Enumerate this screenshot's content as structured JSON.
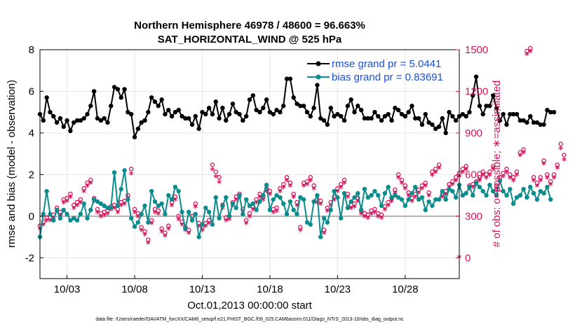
{
  "chart_data": {
    "type": "line",
    "title": "Northern Hemisphere 46978 / 48600 = 96.663%",
    "subtitle": "SAT_HORIZONTAL_WIND @ 525 hPa",
    "xlabel": "Oct.01,2013 00:00:00 start",
    "ylabel_left": "rmse and bias (model - observation)",
    "ylabel_right": "# of obs: o=possible; ∗=assimilated",
    "footer": "data file: /Users/raeder/DAI/ATM_forcXX/CAM6_setup/f.e21.FHIST_BGC.f09_025.CAM6assim.011/Diags_NTrS_2013-10/obs_diag_output.nc",
    "x_range": [
      1.0,
      32.0
    ],
    "y_left_range": [
      -3,
      8
    ],
    "y_right_range": [
      -150,
      1500
    ],
    "y_left_ticks": [
      "8",
      "6",
      "4",
      "2",
      "0",
      "-2"
    ],
    "y_right_ticks": [
      "1500",
      "1200",
      "900",
      "600",
      "300",
      "0"
    ],
    "x_ticks": [
      {
        "x": 3,
        "label": "10/03"
      },
      {
        "x": 8,
        "label": "10/08"
      },
      {
        "x": 13,
        "label": "10/13"
      },
      {
        "x": 18,
        "label": "10/18"
      },
      {
        "x": 23,
        "label": "10/23"
      },
      {
        "x": 28,
        "label": "10/28"
      }
    ],
    "grid": true,
    "colors": {
      "rmse": "#000000",
      "bias": "#0a8c8c",
      "obs": "#d4145a",
      "legend_text": "#1a4fd8",
      "zero_line": "#b0b0b0"
    },
    "series": [
      {
        "name": "rmse grand pr = 5.0441",
        "axis": "left",
        "x_start": 1.0,
        "x_step": 0.25,
        "values": [
          4.9,
          4.6,
          5.7,
          5.0,
          4.8,
          4.5,
          4.7,
          4.3,
          4.6,
          4.1,
          4.5,
          4.6,
          4.6,
          4.7,
          4.9,
          5.3,
          6.0,
          4.7,
          4.6,
          4.7,
          4.5,
          5.3,
          6.2,
          6.1,
          5.7,
          6.1,
          5.0,
          4.9,
          3.8,
          4.2,
          4.5,
          4.6,
          5.0,
          5.7,
          5.5,
          5.3,
          5.6,
          4.9,
          5.1,
          4.8,
          5.0,
          5.1,
          4.8,
          4.7,
          4.7,
          4.4,
          4.8,
          4.2,
          5.0,
          4.9,
          5.2,
          4.9,
          5.5,
          4.7,
          5.2,
          4.6,
          4.9,
          5.4,
          5.0,
          4.9,
          4.6,
          4.8,
          5.6,
          5.8,
          5.1,
          5.0,
          5.2,
          5.6,
          5.0,
          4.9,
          5.1,
          5.0,
          5.3,
          6.6,
          6.6,
          5.7,
          5.4,
          5.3,
          5.3,
          5.0,
          4.8,
          5.2,
          6.3,
          4.7,
          4.6,
          4.4,
          5.2,
          4.8,
          4.9,
          4.8,
          4.6,
          5.3,
          5.6,
          5.0,
          5.3,
          5.1,
          4.7,
          4.7,
          4.7,
          5.0,
          4.8,
          4.6,
          4.8,
          4.9,
          4.6,
          5.2,
          5.1,
          4.9,
          4.8,
          5.0,
          5.3,
          4.7,
          4.7,
          4.4,
          4.9,
          4.5,
          4.4,
          4.2,
          4.3,
          4.7,
          4.0,
          5.0,
          4.8,
          4.6,
          4.8,
          4.9,
          4.8,
          5.0,
          5.8,
          6.7,
          5.3,
          4.9,
          5.3,
          5.3,
          5.8,
          5.2,
          4.6,
          4.9,
          4.4,
          4.9,
          4.9,
          4.9,
          4.6,
          4.6,
          4.5,
          4.8,
          4.5,
          4.5,
          4.4,
          4.4,
          5.1,
          5.0,
          5.0
        ]
      },
      {
        "name": "bias grand pr = 0.83691",
        "axis": "left",
        "x_start": 1.0,
        "x_step": 0.25,
        "values": [
          -1.0,
          0.1,
          1.2,
          0.1,
          -0.2,
          0.3,
          -0.1,
          0.3,
          0.1,
          -0.2,
          -0.1,
          -0.2,
          0.1,
          0.6,
          -0.1,
          0.3,
          0.8,
          0.7,
          0.6,
          0.5,
          0.4,
          0.4,
          2.1,
          0.5,
          1.3,
          2.2,
          0.8,
          -0.1,
          -0.5,
          -0.3,
          0.1,
          0.5,
          -0.3,
          1.2,
          0.7,
          0.5,
          0.6,
          0.1,
          1.0,
          0.8,
          1.4,
          1.2,
          0.2,
          -0.6,
          0.2,
          -0.2,
          0.1,
          -1.0,
          -0.4,
          0.4,
          0.2,
          -0.4,
          0.9,
          -0.1,
          0.5,
          0.9,
          0.0,
          0.6,
          0.4,
          1.0,
          0.1,
          0.8,
          0.5,
          0.6,
          0.3,
          0.7,
          1.0,
          1.5,
          0.3,
          0.8,
          1.0,
          0.9,
          0.6,
          0.1,
          0.7,
          0.3,
          0.1,
          0.9,
          0.8,
          -0.3,
          -0.4,
          0.7,
          1.0,
          -1.0,
          -0.1,
          -0.3,
          0.3,
          1.2,
          0.9,
          -0.1,
          1.1,
          0.4,
          0.7,
          0.9,
          1.1,
          0.3,
          1.3,
          0.9,
          1.0,
          1.2,
          1.0,
          0.5,
          1.1,
          1.4,
          0.9,
          1.0,
          0.9,
          0.8,
          0.5,
          0.8,
          1.1,
          1.4,
          0.8,
          0.9,
          0.3,
          0.7,
          0.5,
          0.8,
          0.8,
          1.2,
          0.8,
          1.3,
          1.2,
          0.9,
          1.5,
          1.0,
          1.1,
          1.4,
          1.0,
          1.6,
          1.4,
          1.2,
          1.0,
          1.5,
          1.2,
          1.0,
          1.7,
          1.2,
          1.0,
          1.3,
          0.6,
          0.9,
          1.0,
          1.3,
          0.9,
          1.4,
          1.1,
          0.8,
          1.2,
          1.1,
          1.4,
          0.8
        ]
      },
      {
        "name": "obs possible",
        "axis": "right",
        "marker": "circle",
        "x_start": 1.0,
        "x_step": 0.25,
        "values": [
          210,
          240,
          270,
          270,
          290,
          340,
          310,
          400,
          410,
          440,
          360,
          380,
          400,
          480,
          520,
          540,
          410,
          330,
          300,
          310,
          320,
          350,
          360,
          330,
          380,
          390,
          430,
          620,
          330,
          300,
          200,
          170,
          110,
          250,
          330,
          320,
          190,
          160,
          210,
          380,
          420,
          280,
          240,
          200,
          180,
          280,
          370,
          230,
          200,
          230,
          250,
          650,
          600,
          560,
          360,
          270,
          280,
          380,
          420,
          440,
          330,
          250,
          300,
          350,
          400,
          440,
          420,
          480,
          460,
          330,
          340,
          480,
          510,
          560,
          520,
          440,
          380,
          200,
          520,
          530,
          560,
          500,
          400,
          390,
          180,
          340,
          380,
          420,
          480,
          510,
          540,
          440,
          360,
          370,
          410,
          320,
          300,
          290,
          320,
          330,
          300,
          290,
          350,
          380,
          410,
          470,
          580,
          540,
          500,
          450,
          410,
          440,
          470,
          500,
          520,
          450,
          600,
          620,
          650,
          440,
          460,
          510,
          530,
          560,
          590,
          620,
          640,
          500,
          510,
          530,
          560,
          600,
          580,
          600,
          640,
          500,
          560,
          590,
          620,
          580,
          560,
          600,
          740,
          760,
          1470,
          1490,
          560,
          520,
          560,
          680,
          580,
          530,
          580,
          650,
          800,
          720
        ]
      },
      {
        "name": "obs assimilated",
        "axis": "right",
        "marker": "star",
        "x_start": 1.0,
        "x_step": 0.25,
        "values": [
          200,
          230,
          260,
          260,
          280,
          330,
          300,
          390,
          400,
          430,
          350,
          370,
          390,
          470,
          510,
          530,
          400,
          320,
          290,
          300,
          310,
          340,
          350,
          320,
          370,
          380,
          420,
          600,
          320,
          290,
          190,
          160,
          100,
          240,
          320,
          310,
          180,
          150,
          200,
          370,
          410,
          270,
          230,
          190,
          170,
          270,
          360,
          220,
          190,
          220,
          240,
          630,
          580,
          540,
          350,
          260,
          270,
          370,
          410,
          430,
          320,
          240,
          290,
          340,
          390,
          430,
          410,
          470,
          450,
          320,
          330,
          470,
          500,
          550,
          510,
          430,
          370,
          190,
          510,
          520,
          550,
          490,
          390,
          380,
          170,
          330,
          370,
          410,
          470,
          500,
          530,
          430,
          350,
          360,
          400,
          310,
          290,
          280,
          310,
          320,
          290,
          280,
          340,
          370,
          400,
          460,
          570,
          530,
          490,
          440,
          400,
          430,
          460,
          490,
          510,
          440,
          590,
          610,
          640,
          430,
          450,
          500,
          520,
          550,
          580,
          610,
          630,
          490,
          500,
          520,
          550,
          590,
          570,
          590,
          630,
          490,
          550,
          580,
          610,
          570,
          550,
          590,
          730,
          750,
          1460,
          1480,
          550,
          510,
          550,
          670,
          570,
          520,
          570,
          640,
          780,
          700
        ]
      }
    ],
    "last_obs_point": {
      "x": 32.0,
      "value": 0
    }
  }
}
